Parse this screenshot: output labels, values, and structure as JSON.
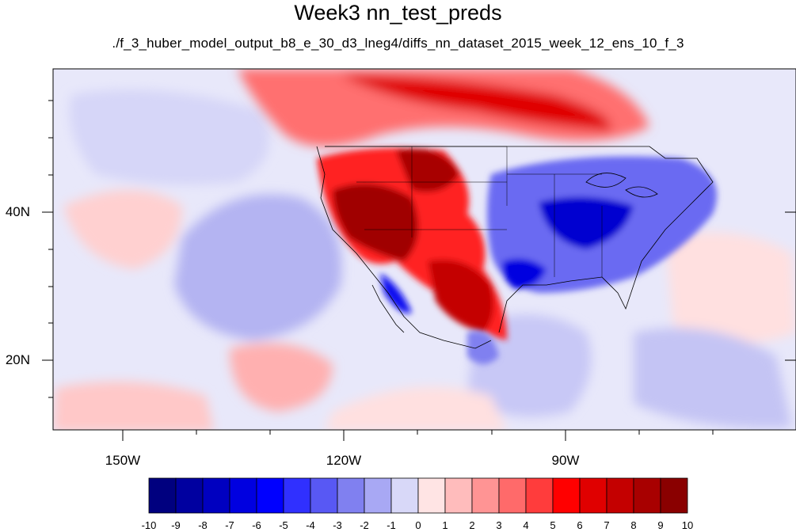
{
  "title": "Week3 nn_test_preds",
  "subtitle": "./f_3_huber_model_output_b8_e_30_d3_lneg4/diffs_nn_dataset_2015_week_12_ens_10_f_3",
  "map": {
    "lat_ticks": [
      "40N",
      "20N"
    ],
    "lon_ticks": [
      "150W",
      "120W",
      "90W"
    ],
    "ocean_base_color": "#e6e6fa",
    "land_outline_color": "#000000"
  },
  "colorbar": {
    "labels": [
      "-10",
      "-9",
      "-8",
      "-7",
      "-6",
      "-5",
      "-4",
      "-3",
      "-2",
      "-1",
      "0",
      "1",
      "2",
      "3",
      "4",
      "5",
      "6",
      "7",
      "8",
      "9",
      "10"
    ],
    "colors": [
      "#00007f",
      "#0000a0",
      "#0000c0",
      "#0000e0",
      "#0000ff",
      "#3030ff",
      "#5858f4",
      "#8080f0",
      "#a8a8f4",
      "#d8d8f8",
      "#ffe4e4",
      "#ffbcbc",
      "#ff9494",
      "#ff6a6a",
      "#ff3c3c",
      "#ff0000",
      "#e00000",
      "#c40000",
      "#a80000",
      "#8a0000"
    ]
  }
}
